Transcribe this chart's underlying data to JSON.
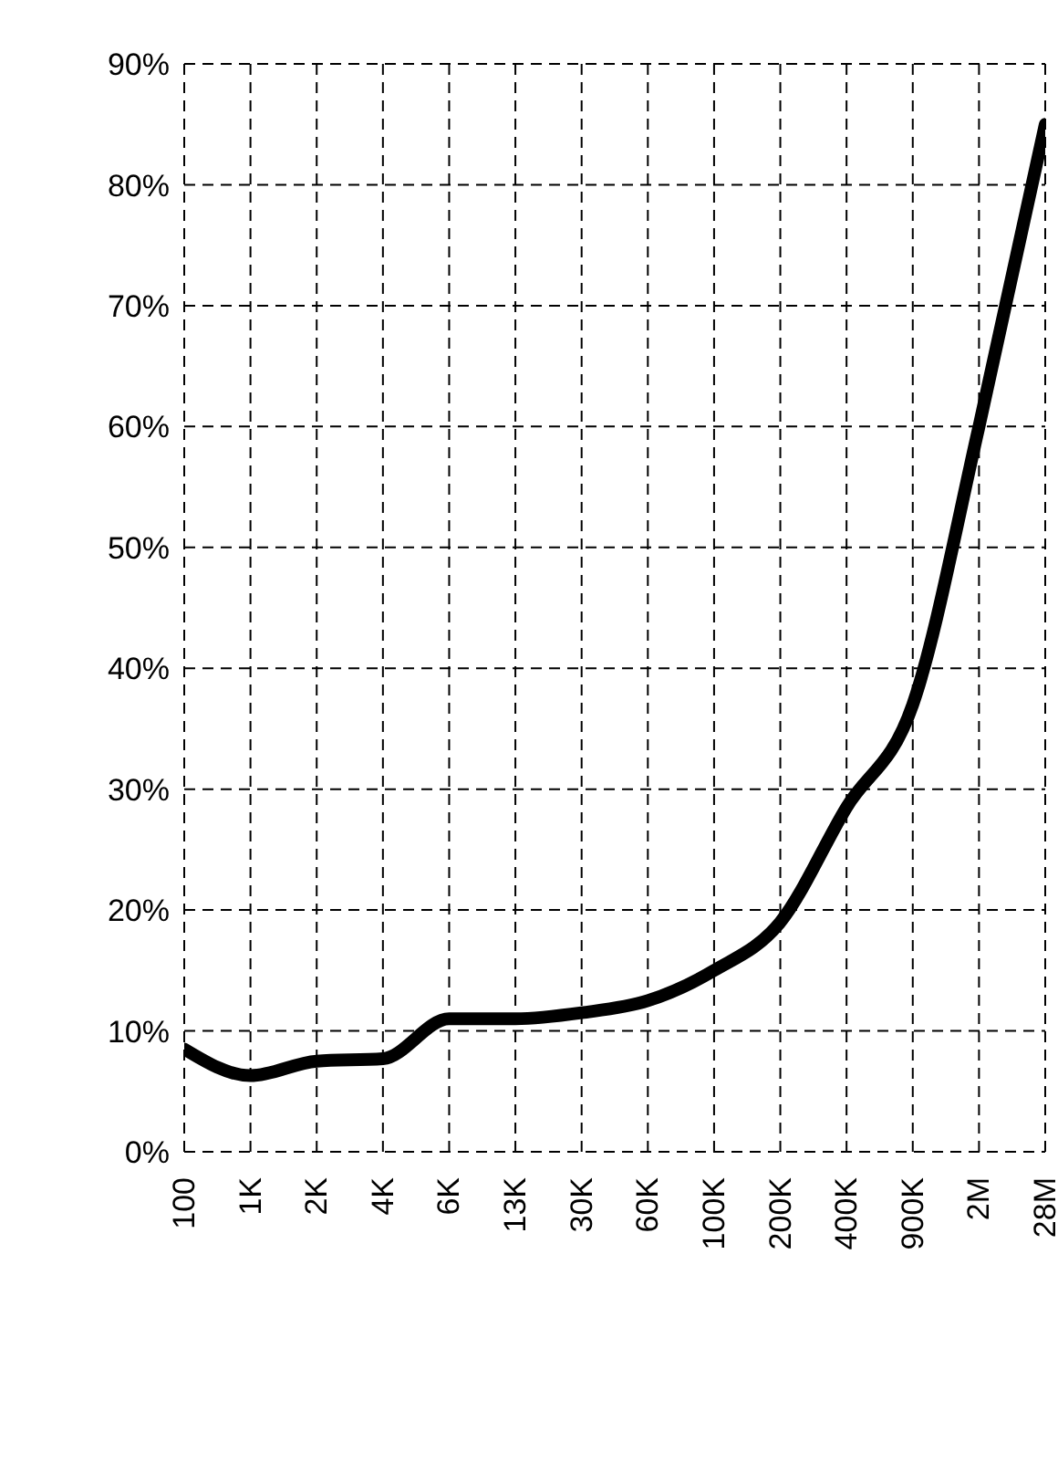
{
  "chart_data": {
    "type": "line",
    "categories": [
      "100",
      "1K",
      "2K",
      "4K",
      "6K",
      "13K",
      "30K",
      "60K",
      "100K",
      "200K",
      "400K",
      "900K",
      "2M",
      "28M"
    ],
    "series": [
      {
        "color": "#000000",
        "values": [
          8.5,
          6.3,
          7.5,
          7.7,
          11,
          11,
          11.5,
          12.5,
          15,
          19,
          28.5,
          37,
          60,
          85
        ]
      }
    ],
    "ylim": [
      0,
      90
    ],
    "yticks": [
      {
        "value": 0,
        "label": "0%"
      },
      {
        "value": 10,
        "label": "10%"
      },
      {
        "value": 20,
        "label": "20%"
      },
      {
        "value": 30,
        "label": "30%"
      },
      {
        "value": 40,
        "label": "40%"
      },
      {
        "value": 50,
        "label": "50%"
      },
      {
        "value": 60,
        "label": "60%"
      },
      {
        "value": 70,
        "label": "70%"
      },
      {
        "value": 80,
        "label": "80%"
      },
      {
        "value": 90,
        "label": "90%"
      }
    ],
    "grid": true,
    "marker": "none",
    "line_style": "solid"
  }
}
